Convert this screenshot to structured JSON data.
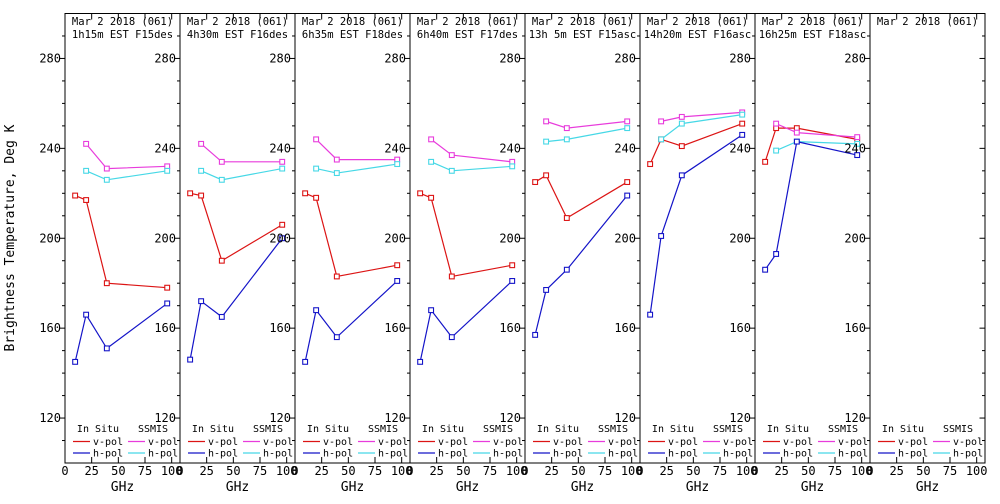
{
  "axes": {
    "ylabel": "Brightness Temperature, Deg K",
    "xlabel": "GHz",
    "y_ticks": [
      120,
      160,
      200,
      240,
      280
    ],
    "y_minor_step": 10,
    "x_ticks": [
      0,
      25,
      50,
      75,
      100
    ],
    "ylim": [
      100,
      300
    ],
    "xlim": [
      0,
      107.8
    ],
    "grid": false
  },
  "legend": {
    "group1": "In Situ",
    "group2": "SSMIS",
    "vpol_label": "v-pol",
    "hpol_label": "h-pol",
    "position": "bottom-inside-each-panel"
  },
  "colors": {
    "insitu_vpol": "#dc1414",
    "insitu_hpol": "#1414c8",
    "ssmis_vpol": "#e83cdc",
    "ssmis_hpol": "#46d8e6",
    "axis": "#000000",
    "background": "#ffffff"
  },
  "chart_data": {
    "type": "line",
    "x_unit": "GHz",
    "x_insitu": [
      9.5,
      19.8,
      39.2,
      95.8
    ],
    "x_ssmis": [
      19.8,
      39.2,
      95.8
    ],
    "panels": [
      {
        "title": "Mar 2 2018 (061)",
        "subtitle": "1h15m EST F15des",
        "series": {
          "insitu_vpol": [
            219,
            217,
            180,
            178
          ],
          "insitu_hpol": [
            145,
            166,
            151,
            171
          ],
          "ssmis_vpol": [
            242,
            231,
            232
          ],
          "ssmis_hpol": [
            230,
            226,
            230
          ]
        }
      },
      {
        "title": "Mar 2 2018 (061)",
        "subtitle": "4h30m EST F16des",
        "series": {
          "insitu_vpol": [
            220,
            219,
            190,
            206
          ],
          "insitu_hpol": [
            146,
            172,
            165,
            200
          ],
          "ssmis_vpol": [
            242,
            234,
            234
          ],
          "ssmis_hpol": [
            230,
            226,
            231
          ]
        }
      },
      {
        "title": "Mar 2 2018 (061)",
        "subtitle": "6h35m EST F18des",
        "series": {
          "insitu_vpol": [
            220,
            218,
            183,
            188
          ],
          "insitu_hpol": [
            145,
            168,
            156,
            181
          ],
          "ssmis_vpol": [
            244,
            235,
            235
          ],
          "ssmis_hpol": [
            231,
            229,
            233
          ]
        }
      },
      {
        "title": "Mar 2 2018 (061)",
        "subtitle": "6h40m EST F17des",
        "series": {
          "insitu_vpol": [
            220,
            218,
            183,
            188
          ],
          "insitu_hpol": [
            145,
            168,
            156,
            181
          ],
          "ssmis_vpol": [
            244,
            237,
            234
          ],
          "ssmis_hpol": [
            234,
            230,
            232
          ]
        }
      },
      {
        "title": "Mar 2 2018 (061)",
        "subtitle": "13h 5m EST F15asc",
        "series": {
          "insitu_vpol": [
            225,
            228,
            209,
            225
          ],
          "insitu_hpol": [
            157,
            177,
            186,
            219
          ],
          "ssmis_vpol": [
            252,
            249,
            252
          ],
          "ssmis_hpol": [
            243,
            244,
            249
          ]
        }
      },
      {
        "title": "Mar 2 2018 (061)",
        "subtitle": "14h20m EST F16asc",
        "series": {
          "insitu_vpol": [
            233,
            244,
            241,
            251
          ],
          "insitu_hpol": [
            166,
            201,
            228,
            246
          ],
          "ssmis_vpol": [
            252,
            254,
            256
          ],
          "ssmis_hpol": [
            244,
            251,
            255
          ]
        }
      },
      {
        "title": "Mar 2 2018 (061)",
        "subtitle": "16h25m EST F18asc",
        "series": {
          "insitu_vpol": [
            234,
            249,
            249,
            244
          ],
          "insitu_hpol": [
            186,
            193,
            243,
            237
          ],
          "ssmis_vpol": [
            251,
            247,
            245
          ],
          "ssmis_hpol": [
            239,
            243,
            242
          ]
        }
      },
      {
        "title": "Mar 2 2018 (061)",
        "subtitle": "",
        "series": {
          "insitu_vpol": [],
          "insitu_hpol": [],
          "ssmis_vpol": [],
          "ssmis_hpol": []
        }
      }
    ]
  }
}
